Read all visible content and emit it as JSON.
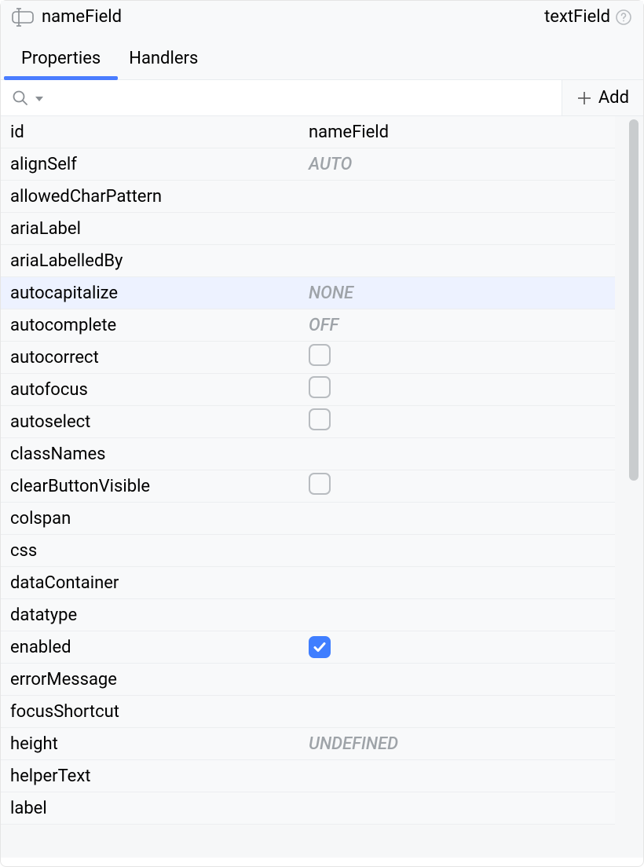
{
  "header": {
    "title": "nameField",
    "type_label": "textField"
  },
  "tabs": {
    "properties": "Properties",
    "handlers": "Handlers",
    "active": "properties"
  },
  "toolbar": {
    "search_placeholder": "",
    "add_label": "Add"
  },
  "colors": {
    "accent": "#3f7eff",
    "tab_underline": "#4a7dff",
    "placeholder_text": "#9ea3a8",
    "row_highlight": "#edf2ff",
    "border": "#e9ecef",
    "bg": "#f8f9fa"
  },
  "properties": [
    {
      "name": "id",
      "value": "nameField",
      "type": "text"
    },
    {
      "name": "alignSelf",
      "value": "AUTO",
      "type": "placeholder"
    },
    {
      "name": "allowedCharPattern",
      "value": "",
      "type": "text"
    },
    {
      "name": "ariaLabel",
      "value": "",
      "type": "text"
    },
    {
      "name": "ariaLabelledBy",
      "value": "",
      "type": "text"
    },
    {
      "name": "autocapitalize",
      "value": "NONE",
      "type": "placeholder",
      "highlight": true
    },
    {
      "name": "autocomplete",
      "value": "OFF",
      "type": "placeholder"
    },
    {
      "name": "autocorrect",
      "value": false,
      "type": "checkbox"
    },
    {
      "name": "autofocus",
      "value": false,
      "type": "checkbox"
    },
    {
      "name": "autoselect",
      "value": false,
      "type": "checkbox"
    },
    {
      "name": "classNames",
      "value": "",
      "type": "text"
    },
    {
      "name": "clearButtonVisible",
      "value": false,
      "type": "checkbox"
    },
    {
      "name": "colspan",
      "value": "",
      "type": "text"
    },
    {
      "name": "css",
      "value": "",
      "type": "text"
    },
    {
      "name": "dataContainer",
      "value": "",
      "type": "text"
    },
    {
      "name": "datatype",
      "value": "",
      "type": "text"
    },
    {
      "name": "enabled",
      "value": true,
      "type": "checkbox"
    },
    {
      "name": "errorMessage",
      "value": "",
      "type": "text"
    },
    {
      "name": "focusShortcut",
      "value": "",
      "type": "text"
    },
    {
      "name": "height",
      "value": "UNDEFINED",
      "type": "placeholder"
    },
    {
      "name": "helperText",
      "value": "",
      "type": "text"
    },
    {
      "name": "label",
      "value": "",
      "type": "text"
    }
  ]
}
